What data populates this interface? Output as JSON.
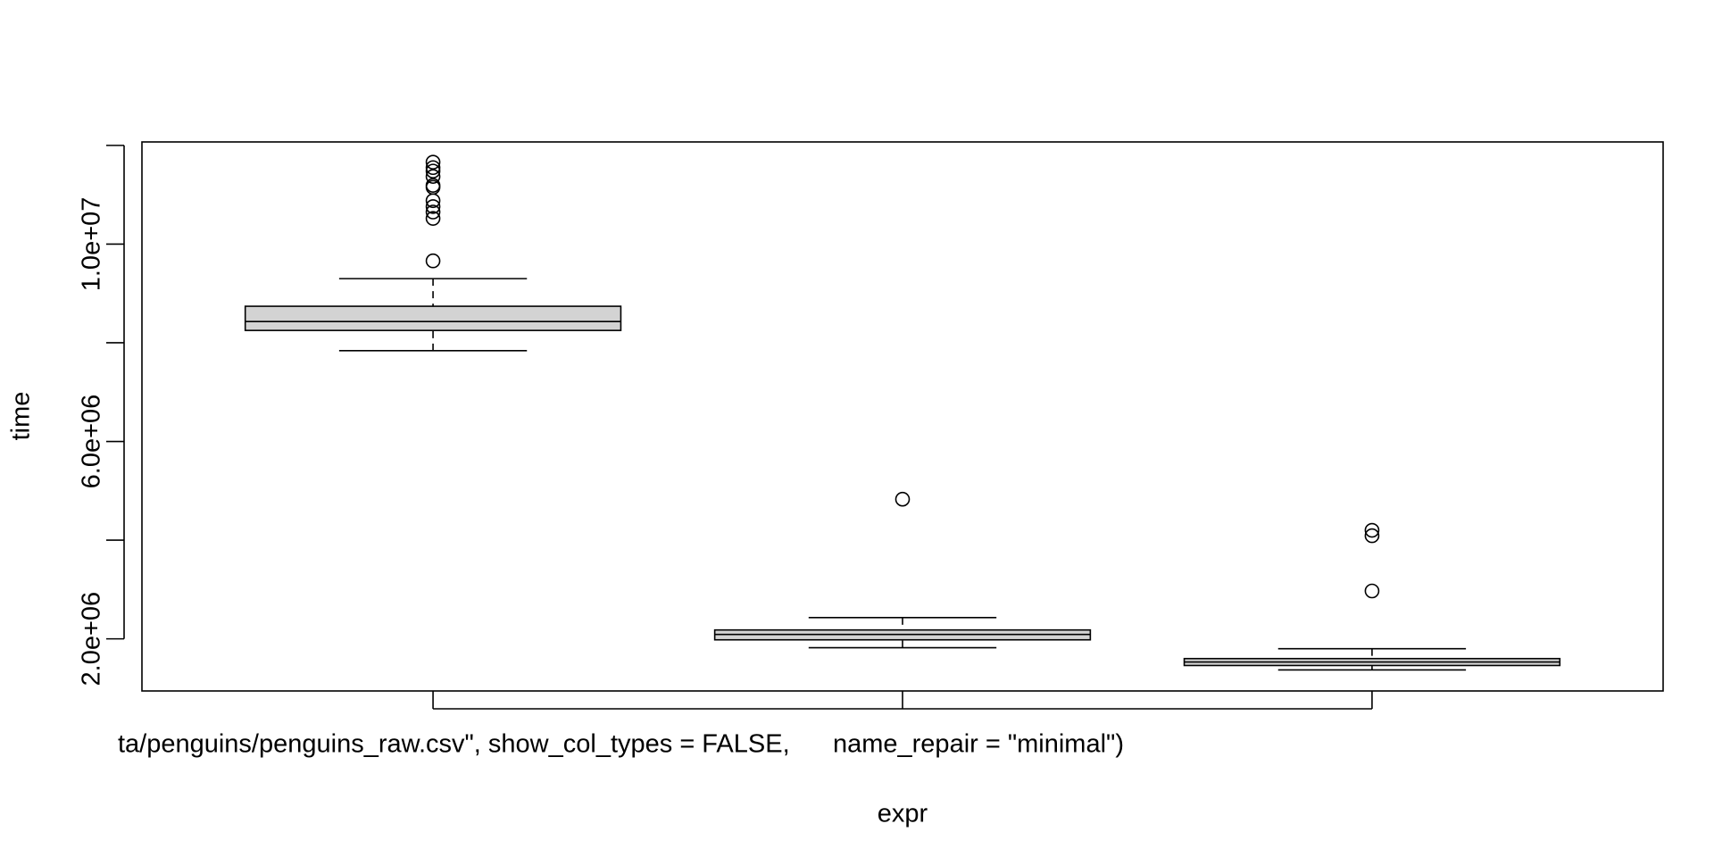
{
  "chart_data": {
    "type": "boxplot",
    "y_label": "time",
    "x_label": "expr",
    "categories": [
      "ta/penguins/penguins_raw.csv\", show_col_types = FALSE,      name_repair = \"minimal\")",
      null,
      null
    ],
    "color": "#d3d3d3",
    "boxes": [
      {
        "whislo": 7840000,
        "q1": 8250000,
        "med": 8430000,
        "q3": 8740000,
        "whishi": 9300000,
        "outliers": [
          9660000,
          10520000,
          10650000,
          10760000,
          10880000,
          11150000,
          11190000,
          11370000,
          11480000,
          11550000,
          11660000
        ]
      },
      {
        "whislo": 1820000,
        "q1": 1980000,
        "med": 2090000,
        "q3": 2180000,
        "whishi": 2430000,
        "outliers": [
          4830000
        ]
      },
      {
        "whislo": 1370000,
        "q1": 1460000,
        "med": 1530000,
        "q3": 1600000,
        "whishi": 1800000,
        "outliers": [
          2970000,
          4090000,
          4200000
        ]
      }
    ],
    "ylim": [
      944000,
      12070000
    ],
    "yticks": [
      {
        "value": 2000000,
        "label": "2.0e+06"
      },
      {
        "value": 4000000,
        "label": null
      },
      {
        "value": 6000000,
        "label": "6.0e+06"
      },
      {
        "value": 8000000,
        "label": null
      },
      {
        "value": 10000000,
        "label": "1.0e+07"
      },
      {
        "value": 12000000,
        "label": null
      }
    ]
  }
}
